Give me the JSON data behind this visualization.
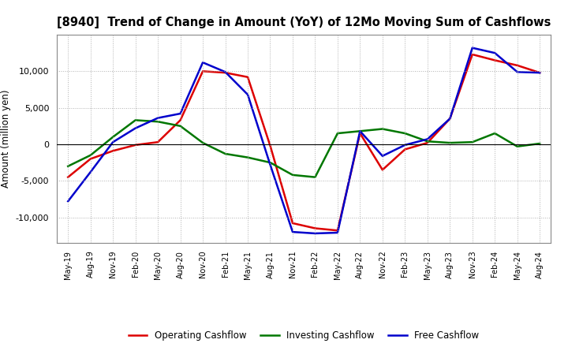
{
  "title": "[8940]  Trend of Change in Amount (YoY) of 12Mo Moving Sum of Cashflows",
  "ylabel": "Amount (million yen)",
  "background_color": "#ffffff",
  "plot_bg_color": "#ffffff",
  "grid_color": "#b0b0b0",
  "x_labels": [
    "May-19",
    "Aug-19",
    "Nov-19",
    "Feb-20",
    "May-20",
    "Aug-20",
    "Nov-20",
    "Feb-21",
    "May-21",
    "Aug-21",
    "Nov-21",
    "Feb-22",
    "May-22",
    "Aug-22",
    "Nov-22",
    "Feb-23",
    "May-23",
    "Aug-23",
    "Nov-23",
    "Feb-24",
    "May-24",
    "Aug-24"
  ],
  "operating": [
    -4500,
    -2000,
    -900,
    -100,
    300,
    3300,
    10000,
    9800,
    9200,
    -200,
    -10800,
    -11500,
    -11800,
    1500,
    -3500,
    -700,
    200,
    3500,
    12300,
    11500,
    10800,
    9800
  ],
  "investing": [
    -3000,
    -1500,
    1000,
    3300,
    3100,
    2500,
    200,
    -1300,
    -1800,
    -2500,
    -4200,
    -4500,
    1500,
    1800,
    2100,
    1500,
    400,
    200,
    300,
    1500,
    -300,
    100
  ],
  "free": [
    -7800,
    -3800,
    300,
    2200,
    3600,
    4200,
    11200,
    9900,
    6800,
    -2800,
    -12000,
    -12200,
    -12100,
    1800,
    -1600,
    -100,
    700,
    3500,
    13200,
    12500,
    9900,
    9800
  ],
  "ylim": [
    -13500,
    15000
  ],
  "yticks": [
    -10000,
    -5000,
    0,
    5000,
    10000
  ],
  "operating_color": "#dd0000",
  "investing_color": "#007700",
  "free_color": "#0000cc",
  "line_width": 1.8
}
